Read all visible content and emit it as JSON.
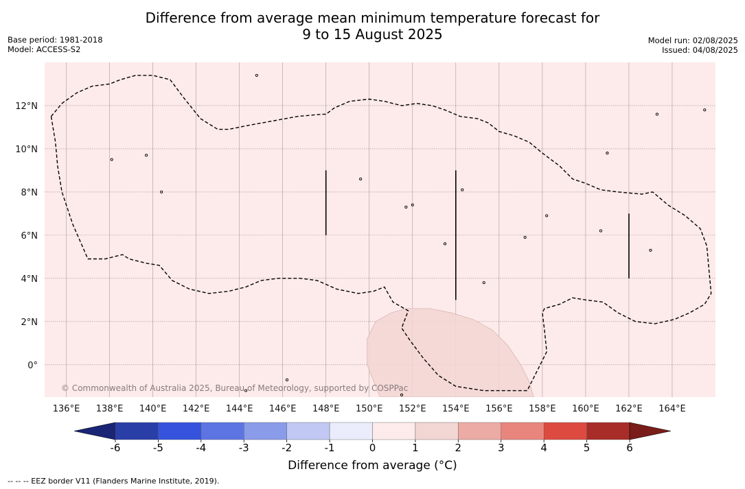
{
  "title": {
    "line1": "Difference from average mean minimum temperature forecast for",
    "line2": "9 to 15 August 2025"
  },
  "info_left": {
    "base_period": "Base period: 1981-2018",
    "model": "Model: ACCESS-S2"
  },
  "info_right": {
    "model_run": "Model run: 02/08/2025",
    "issued": "Issued: 04/08/2025"
  },
  "map": {
    "lon_range": [
      135,
      166
    ],
    "lat_range": [
      -1.5,
      14
    ],
    "background_anomaly_color": "#fcebea",
    "lon_ticks": [
      {
        "value": 136,
        "label": "136°E"
      },
      {
        "value": 138,
        "label": "138°E"
      },
      {
        "value": 140,
        "label": "140°E"
      },
      {
        "value": 142,
        "label": "142°E"
      },
      {
        "value": 144,
        "label": "144°E"
      },
      {
        "value": 146,
        "label": "146°E"
      },
      {
        "value": 148,
        "label": "148°E"
      },
      {
        "value": 150,
        "label": "150°E"
      },
      {
        "value": 152,
        "label": "152°E"
      },
      {
        "value": 154,
        "label": "154°E"
      },
      {
        "value": 156,
        "label": "156°E"
      },
      {
        "value": 158,
        "label": "158°E"
      },
      {
        "value": 160,
        "label": "160°E"
      },
      {
        "value": 162,
        "label": "162°E"
      },
      {
        "value": 164,
        "label": "164°E"
      }
    ],
    "lat_ticks": [
      {
        "value": 0,
        "label": "0°"
      },
      {
        "value": 2,
        "label": "2°N"
      },
      {
        "value": 4,
        "label": "4°N"
      },
      {
        "value": 6,
        "label": "6°N"
      },
      {
        "value": 8,
        "label": "8°N"
      },
      {
        "value": 10,
        "label": "10°N"
      },
      {
        "value": 12,
        "label": "12°N"
      }
    ],
    "copyright": "© Commonwealth of Australia 2025, Bureau of Meteorology, supported by COSPPac",
    "eez_border": [
      [
        135.3,
        11.5
      ],
      [
        135.8,
        12.1
      ],
      [
        136.5,
        12.6
      ],
      [
        137.2,
        12.9
      ],
      [
        138.0,
        13.0
      ],
      [
        138.5,
        13.2
      ],
      [
        139.2,
        13.4
      ],
      [
        140.0,
        13.4
      ],
      [
        140.8,
        13.2
      ],
      [
        141.4,
        12.4
      ],
      [
        142.2,
        11.4
      ],
      [
        143.0,
        10.9
      ],
      [
        143.5,
        10.9
      ],
      [
        144.5,
        11.1
      ],
      [
        145.6,
        11.3
      ],
      [
        146.7,
        11.5
      ],
      [
        147.8,
        11.6
      ],
      [
        148.0,
        11.6
      ],
      [
        148.4,
        11.9
      ],
      [
        149.1,
        12.2
      ],
      [
        150.0,
        12.3
      ],
      [
        150.7,
        12.2
      ],
      [
        151.5,
        12.0
      ],
      [
        152.2,
        12.1
      ],
      [
        152.9,
        12.0
      ],
      [
        153.5,
        11.8
      ],
      [
        154.2,
        11.5
      ],
      [
        155.0,
        11.4
      ],
      [
        155.5,
        11.2
      ],
      [
        156.0,
        10.8
      ],
      [
        156.7,
        10.6
      ],
      [
        157.4,
        10.3
      ],
      [
        158.0,
        9.8
      ],
      [
        158.8,
        9.2
      ],
      [
        159.4,
        8.6
      ],
      [
        160.0,
        8.4
      ],
      [
        160.7,
        8.1
      ],
      [
        161.5,
        8.0
      ],
      [
        162.6,
        7.9
      ],
      [
        163.1,
        8.0
      ],
      [
        163.8,
        7.4
      ],
      [
        164.6,
        6.9
      ],
      [
        165.3,
        6.3
      ],
      [
        165.6,
        5.5
      ],
      [
        165.7,
        4.4
      ],
      [
        165.8,
        3.3
      ],
      [
        165.5,
        2.8
      ],
      [
        164.8,
        2.4
      ],
      [
        164.1,
        2.1
      ],
      [
        163.2,
        1.9
      ],
      [
        162.3,
        2.0
      ],
      [
        161.5,
        2.4
      ],
      [
        160.8,
        2.9
      ],
      [
        160.0,
        3.0
      ],
      [
        159.4,
        3.1
      ],
      [
        158.8,
        2.8
      ],
      [
        158.1,
        2.6
      ],
      [
        158.0,
        2.4
      ],
      [
        158.1,
        1.6
      ],
      [
        158.2,
        0.6
      ],
      [
        157.6,
        -0.6
      ],
      [
        157.3,
        -1.2
      ],
      [
        155.3,
        -1.2
      ],
      [
        154.0,
        -1.0
      ],
      [
        153.2,
        -0.5
      ],
      [
        152.5,
        0.3
      ],
      [
        151.9,
        1.1
      ],
      [
        151.5,
        1.7
      ],
      [
        151.8,
        2.5
      ],
      [
        151.1,
        2.9
      ],
      [
        150.7,
        3.6
      ],
      [
        150.2,
        3.4
      ],
      [
        149.5,
        3.3
      ],
      [
        148.5,
        3.5
      ],
      [
        147.6,
        3.9
      ],
      [
        146.8,
        4.0
      ],
      [
        145.8,
        4.0
      ],
      [
        145.0,
        3.9
      ],
      [
        144.3,
        3.6
      ],
      [
        143.5,
        3.4
      ],
      [
        142.6,
        3.3
      ],
      [
        141.7,
        3.5
      ],
      [
        140.9,
        3.9
      ],
      [
        140.3,
        4.6
      ],
      [
        139.7,
        4.7
      ],
      [
        138.9,
        4.9
      ],
      [
        138.6,
        5.1
      ],
      [
        137.8,
        4.9
      ],
      [
        137.0,
        4.9
      ],
      [
        136.3,
        6.5
      ],
      [
        135.8,
        8.0
      ],
      [
        135.6,
        9.2
      ],
      [
        135.5,
        10.3
      ],
      [
        135.3,
        11.5
      ]
    ],
    "anomaly_region": [
      [
        149.9,
        1.2
      ],
      [
        150.3,
        2.0
      ],
      [
        151.0,
        2.4
      ],
      [
        151.7,
        2.6
      ],
      [
        152.8,
        2.6
      ],
      [
        153.8,
        2.4
      ],
      [
        154.8,
        2.1
      ],
      [
        155.7,
        1.6
      ],
      [
        156.4,
        0.9
      ],
      [
        157.0,
        0.0
      ],
      [
        157.4,
        -0.8
      ],
      [
        157.6,
        -1.5
      ],
      [
        150.5,
        -1.5
      ],
      [
        149.9,
        0.0
      ],
      [
        149.9,
        1.2
      ]
    ],
    "eez_lines": [
      [
        [
          148.0,
          9.0
        ],
        [
          148.0,
          6.0
        ]
      ],
      [
        [
          154.0,
          9.0
        ],
        [
          154.0,
          3.0
        ]
      ],
      [
        [
          162.0,
          7.0
        ],
        [
          162.0,
          4.0
        ]
      ]
    ],
    "islands": [
      [
        144.8,
        13.4
      ],
      [
        138.1,
        9.5
      ],
      [
        139.7,
        9.7
      ],
      [
        140.4,
        8.0
      ],
      [
        149.6,
        8.6
      ],
      [
        151.7,
        7.3
      ],
      [
        152.0,
        7.4
      ],
      [
        158.2,
        6.9
      ],
      [
        160.7,
        6.2
      ],
      [
        163.0,
        5.3
      ],
      [
        157.2,
        5.9
      ],
      [
        153.5,
        5.6
      ],
      [
        155.3,
        3.8
      ],
      [
        154.3,
        8.1
      ],
      [
        161.0,
        9.8
      ],
      [
        163.3,
        11.6
      ],
      [
        165.5,
        11.8
      ],
      [
        144.3,
        -1.2
      ],
      [
        146.2,
        -0.7
      ],
      [
        151.5,
        -1.4
      ]
    ]
  },
  "colorbar": {
    "label": "Difference from average (°C)",
    "tick_labels": [
      "-6",
      "-5",
      "-4",
      "-3",
      "-2",
      "-1",
      "0",
      "1",
      "2",
      "3",
      "4",
      "5",
      "6"
    ],
    "under_color": "#1a2576",
    "over_color": "#7a1d1a",
    "colors": [
      "#2a3ea8",
      "#3553dc",
      "#5d75e3",
      "#8a9be9",
      "#c0c8f3",
      "#eaecfb",
      "#fcebea",
      "#f2d6d3",
      "#ecaba4",
      "#e8857d",
      "#dd4b40",
      "#a82c27"
    ]
  },
  "footnote": "--  --  -- EEZ border V11 (Flanders Marine Institute, 2019)."
}
